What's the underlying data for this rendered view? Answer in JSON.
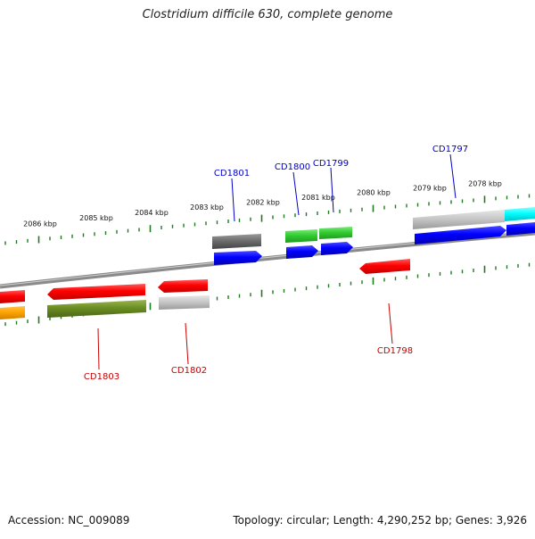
{
  "title": "Clostridium difficile 630, complete genome",
  "footer": {
    "accession": "Accession: NC_009089",
    "summary": "Topology: circular; Length: 4,290,252 bp; Genes: 3,926"
  },
  "colors": {
    "backbone": "#8a8a8a",
    "tick": "#1e7a1e",
    "forward_label": "#0000c8",
    "reverse_label": "#c80000"
  },
  "ruler_labels": [
    "2086 kbp",
    "2085 kbp",
    "2084 kbp",
    "2083 kbp",
    "2082 kbp",
    "2081 kbp",
    "2080 kbp",
    "2079 kbp",
    "2078 kbp"
  ],
  "gene_labels": [
    {
      "name": "CD1801",
      "strand": "forward"
    },
    {
      "name": "CD1800",
      "strand": "forward"
    },
    {
      "name": "CD1799",
      "strand": "forward"
    },
    {
      "name": "CD1797",
      "strand": "forward"
    },
    {
      "name": "CD1803",
      "strand": "reverse"
    },
    {
      "name": "CD1802",
      "strand": "reverse"
    },
    {
      "name": "CD1798",
      "strand": "reverse"
    }
  ]
}
